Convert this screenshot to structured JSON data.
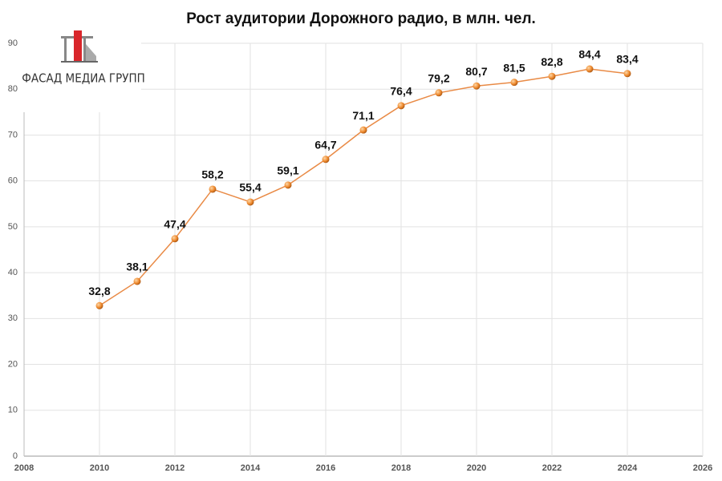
{
  "chart_data": {
    "type": "line",
    "title": "Рост аудитории Дорожного радио, в млн. чел.",
    "x": [
      2010,
      2011,
      2012,
      2013,
      2014,
      2015,
      2016,
      2017,
      2018,
      2019,
      2020,
      2021,
      2022,
      2023,
      2024
    ],
    "values": [
      32.8,
      38.1,
      47.4,
      58.2,
      55.4,
      59.1,
      64.7,
      71.1,
      76.4,
      79.2,
      80.7,
      81.5,
      82.8,
      84.4,
      83.4
    ],
    "value_labels": [
      "32,8",
      "38,1",
      "47,4",
      "58,2",
      "55,4",
      "59,1",
      "64,7",
      "71,1",
      "76,4",
      "79,2",
      "80,7",
      "81,5",
      "82,8",
      "84,4",
      "83,4"
    ],
    "color": "#e98a45",
    "xlim": [
      2008,
      2026
    ],
    "xticks": [
      2008,
      2010,
      2012,
      2014,
      2016,
      2018,
      2020,
      2022,
      2024,
      2026
    ],
    "ylim": [
      0,
      90
    ],
    "yticks": [
      0,
      10,
      20,
      30,
      40,
      50,
      60,
      70,
      80,
      90
    ],
    "grid": true
  },
  "logo": {
    "text": "ФАСАД МЕДИА ГРУПП"
  }
}
